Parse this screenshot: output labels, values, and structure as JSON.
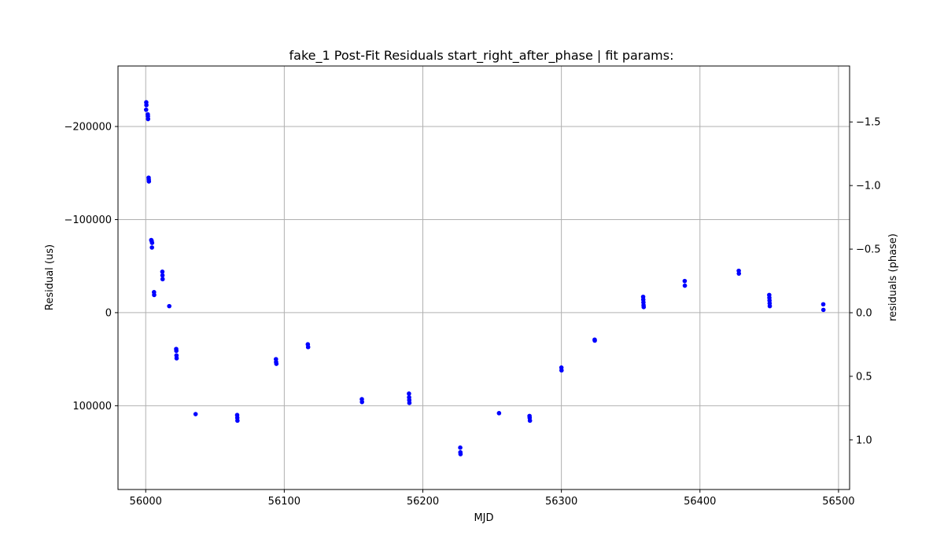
{
  "chart_data": {
    "type": "scatter",
    "title": "fake_1 Post-Fit Residuals start_right_after_phase | fit params:",
    "xlabel": "MJD",
    "ylabel": "Residual (us)",
    "y2label": "residuals (phase)",
    "xlim": [
      55980,
      56508
    ],
    "ylim": [
      -265000,
      190000
    ],
    "y_inverted": true,
    "y2lim": [
      -1.94,
      1.39
    ],
    "y2_inverted": true,
    "grid": true,
    "marker_color": "#0000ff",
    "xticks": [
      56000,
      56100,
      56200,
      56300,
      56400,
      56500
    ],
    "xtick_labels": [
      "56000",
      "56100",
      "56200",
      "56300",
      "56400",
      "56500"
    ],
    "yticks": [
      -200000,
      -100000,
      0,
      100000
    ],
    "ytick_labels": [
      "−200000",
      "−100000",
      "0",
      "100000"
    ],
    "y2ticks": [
      -1.5,
      -1.0,
      -0.5,
      0.0,
      0.5,
      1.0
    ],
    "y2tick_labels": [
      "−1.5",
      "−1.0",
      "−0.5",
      "0.0",
      "0.5",
      "1.0"
    ],
    "points": [
      {
        "x": 56000.4,
        "y": -226000
      },
      {
        "x": 56000.5,
        "y": -223000
      },
      {
        "x": 56000.3,
        "y": -218000
      },
      {
        "x": 56001.5,
        "y": -213000
      },
      {
        "x": 56001.6,
        "y": -211000
      },
      {
        "x": 56001.7,
        "y": -208000
      },
      {
        "x": 56002.1,
        "y": -145000
      },
      {
        "x": 56002.2,
        "y": -143000
      },
      {
        "x": 56002.3,
        "y": -141000
      },
      {
        "x": 56004.0,
        "y": -78000
      },
      {
        "x": 56004.3,
        "y": -77000
      },
      {
        "x": 56004.6,
        "y": -75000
      },
      {
        "x": 56004.5,
        "y": -70000
      },
      {
        "x": 56012.0,
        "y": -44000
      },
      {
        "x": 56012.1,
        "y": -40000
      },
      {
        "x": 56012.2,
        "y": -36000
      },
      {
        "x": 56006.0,
        "y": -22000
      },
      {
        "x": 56006.1,
        "y": -19000
      },
      {
        "x": 56017.0,
        "y": -7000
      },
      {
        "x": 56022.0,
        "y": 39000
      },
      {
        "x": 56022.1,
        "y": 41000
      },
      {
        "x": 56022.2,
        "y": 46000
      },
      {
        "x": 56022.3,
        "y": 49000
      },
      {
        "x": 56036.0,
        "y": 109000
      },
      {
        "x": 56066.0,
        "y": 110000
      },
      {
        "x": 56066.1,
        "y": 113000
      },
      {
        "x": 56066.2,
        "y": 116000
      },
      {
        "x": 56094.0,
        "y": 50000
      },
      {
        "x": 56094.1,
        "y": 53000
      },
      {
        "x": 56094.3,
        "y": 55000
      },
      {
        "x": 56117.0,
        "y": 34000
      },
      {
        "x": 56117.2,
        "y": 37000
      },
      {
        "x": 56156.0,
        "y": 93000
      },
      {
        "x": 56156.1,
        "y": 96000
      },
      {
        "x": 56190.0,
        "y": 87000
      },
      {
        "x": 56190.1,
        "y": 91000
      },
      {
        "x": 56190.2,
        "y": 94000
      },
      {
        "x": 56190.3,
        "y": 97000
      },
      {
        "x": 56227.0,
        "y": 145000
      },
      {
        "x": 56227.1,
        "y": 150000
      },
      {
        "x": 56227.2,
        "y": 152000
      },
      {
        "x": 56255.0,
        "y": 108000
      },
      {
        "x": 56277.0,
        "y": 111000
      },
      {
        "x": 56277.1,
        "y": 113000
      },
      {
        "x": 56277.3,
        "y": 116000
      },
      {
        "x": 56300.0,
        "y": 59000
      },
      {
        "x": 56300.1,
        "y": 62000
      },
      {
        "x": 56324.0,
        "y": 29000
      },
      {
        "x": 56324.1,
        "y": 30000
      },
      {
        "x": 56359.0,
        "y": -17000
      },
      {
        "x": 56359.1,
        "y": -14000
      },
      {
        "x": 56359.2,
        "y": -11000
      },
      {
        "x": 56359.3,
        "y": -8000
      },
      {
        "x": 56359.4,
        "y": -6000
      },
      {
        "x": 56389.0,
        "y": -34000
      },
      {
        "x": 56389.1,
        "y": -29000
      },
      {
        "x": 56428.0,
        "y": -45000
      },
      {
        "x": 56428.1,
        "y": -42000
      },
      {
        "x": 56450.0,
        "y": -19000
      },
      {
        "x": 56450.1,
        "y": -16000
      },
      {
        "x": 56450.2,
        "y": -13000
      },
      {
        "x": 56450.3,
        "y": -10000
      },
      {
        "x": 56450.4,
        "y": -7000
      },
      {
        "x": 56489.0,
        "y": -9000
      },
      {
        "x": 56489.1,
        "y": -3000
      }
    ]
  }
}
